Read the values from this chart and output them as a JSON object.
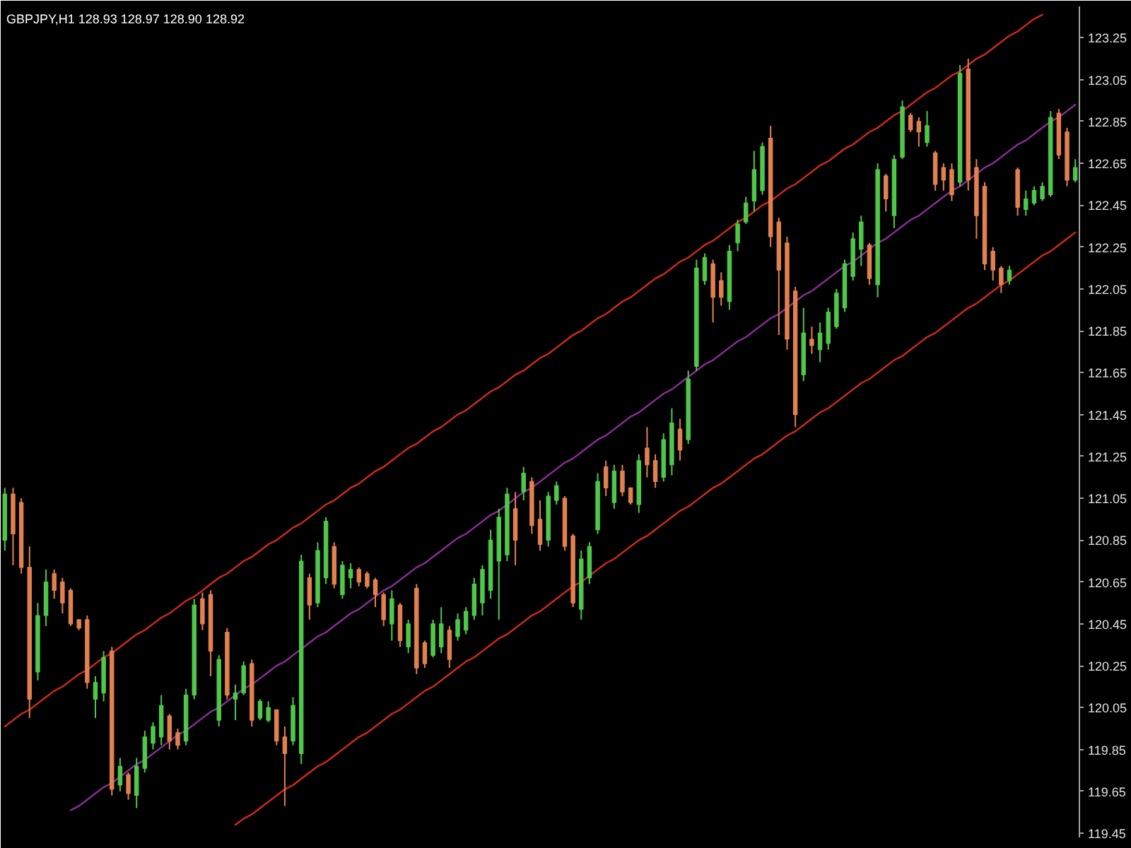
{
  "chart_data": {
    "type": "candlestick",
    "title": "GBPJPY,H1 128.93 128.97 128.90 128.92",
    "categories": [
      null,
      null,
      null,
      null,
      null,
      null,
      null,
      null,
      null,
      null,
      null,
      null,
      null,
      null,
      null,
      null,
      null,
      null,
      null,
      null,
      null,
      null,
      null,
      null,
      null,
      null,
      null,
      null,
      null,
      null,
      null,
      null,
      null,
      null,
      null,
      null,
      null,
      null,
      null,
      null,
      null,
      null,
      null,
      null,
      null,
      null,
      null,
      null,
      null,
      null,
      null,
      null,
      null,
      null,
      null,
      null,
      null,
      null,
      null,
      null,
      null,
      null,
      null,
      null,
      null,
      null,
      null,
      null,
      null,
      null,
      null,
      null,
      null,
      null,
      null,
      null,
      null,
      null,
      null,
      null,
      null,
      null,
      null,
      null,
      null,
      null,
      null,
      null,
      null,
      null,
      null,
      null,
      null,
      null,
      null,
      null,
      null,
      null,
      null,
      null,
      null,
      null,
      null,
      null,
      null,
      null,
      null,
      null,
      null,
      null,
      null,
      null,
      null,
      null,
      null,
      null,
      null,
      null,
      null,
      null,
      null,
      null,
      null,
      null,
      null,
      null,
      null,
      null,
      null,
      null,
      null
    ],
    "ohlc": [
      [
        120.85,
        121.1,
        120.8,
        121.07
      ],
      [
        121.07,
        121.1,
        120.73,
        120.88
      ],
      [
        121.03,
        121.05,
        120.69,
        120.72
      ],
      [
        120.72,
        120.82,
        120.0,
        120.09
      ],
      [
        120.22,
        120.55,
        120.18,
        120.49
      ],
      [
        120.49,
        120.71,
        120.44,
        120.65
      ],
      [
        120.69,
        120.71,
        120.57,
        120.61
      ],
      [
        120.65,
        120.67,
        120.5,
        120.55
      ],
      [
        120.61,
        120.62,
        120.44,
        120.45
      ],
      [
        120.47,
        120.47,
        120.42,
        120.43
      ],
      [
        120.47,
        120.49,
        120.14,
        120.17
      ],
      [
        120.09,
        120.2,
        120.0,
        120.17
      ],
      [
        120.12,
        120.32,
        120.08,
        120.29
      ],
      [
        120.32,
        120.34,
        119.63,
        119.66
      ],
      [
        119.68,
        119.81,
        119.65,
        119.77
      ],
      [
        119.73,
        119.74,
        119.61,
        119.64
      ],
      [
        119.63,
        119.81,
        119.57,
        119.77
      ],
      [
        119.76,
        119.94,
        119.74,
        119.91
      ],
      [
        119.88,
        119.98,
        119.85,
        119.96
      ],
      [
        119.91,
        120.11,
        119.87,
        120.06
      ],
      [
        120.01,
        120.02,
        119.85,
        119.89
      ],
      [
        119.93,
        119.95,
        119.85,
        119.87
      ],
      [
        119.89,
        120.14,
        119.87,
        120.11
      ],
      [
        120.11,
        120.57,
        120.09,
        120.54
      ],
      [
        120.57,
        120.6,
        120.42,
        120.45
      ],
      [
        120.59,
        120.61,
        120.2,
        120.32
      ],
      [
        119.99,
        120.3,
        119.96,
        120.28
      ],
      [
        120.41,
        120.43,
        120.09,
        120.11
      ],
      [
        120.09,
        120.16,
        119.99,
        120.12
      ],
      [
        120.12,
        120.27,
        120.11,
        120.25
      ],
      [
        120.26,
        120.28,
        119.96,
        119.99
      ],
      [
        120.0,
        120.09,
        119.99,
        120.08
      ],
      [
        119.99,
        120.08,
        119.98,
        120.05
      ],
      [
        120.04,
        120.04,
        119.87,
        119.89
      ],
      [
        119.91,
        119.96,
        119.58,
        119.83
      ],
      [
        119.89,
        120.1,
        119.87,
        120.06
      ],
      [
        119.83,
        120.78,
        119.78,
        120.75
      ],
      [
        120.67,
        120.69,
        120.47,
        120.54
      ],
      [
        120.55,
        120.84,
        120.53,
        120.8
      ],
      [
        120.67,
        120.96,
        120.64,
        120.94
      ],
      [
        120.82,
        120.84,
        120.62,
        120.64
      ],
      [
        120.59,
        120.75,
        120.57,
        120.73
      ],
      [
        120.67,
        120.74,
        120.62,
        120.71
      ],
      [
        120.71,
        120.72,
        120.63,
        120.65
      ],
      [
        120.69,
        120.7,
        120.62,
        120.63
      ],
      [
        120.66,
        120.67,
        120.53,
        120.59
      ],
      [
        120.59,
        120.6,
        120.44,
        120.47
      ],
      [
        120.45,
        120.61,
        120.37,
        120.57
      ],
      [
        120.54,
        120.55,
        120.34,
        120.37
      ],
      [
        120.34,
        120.47,
        120.31,
        120.45
      ],
      [
        120.62,
        120.64,
        120.21,
        120.24
      ],
      [
        120.36,
        120.37,
        120.24,
        120.26
      ],
      [
        120.3,
        120.47,
        120.29,
        120.45
      ],
      [
        120.34,
        120.53,
        120.31,
        120.45
      ],
      [
        120.42,
        120.44,
        120.24,
        120.28
      ],
      [
        120.39,
        120.5,
        120.37,
        120.47
      ],
      [
        120.42,
        120.53,
        120.4,
        120.51
      ],
      [
        120.49,
        120.67,
        120.47,
        120.64
      ],
      [
        120.55,
        120.73,
        120.49,
        120.71
      ],
      [
        120.61,
        120.9,
        120.57,
        120.85
      ],
      [
        120.75,
        121.0,
        120.47,
        120.96
      ],
      [
        120.78,
        121.1,
        120.75,
        121.07
      ],
      [
        121.0,
        121.08,
        120.73,
        120.85
      ],
      [
        121.08,
        121.2,
        121.04,
        121.17
      ],
      [
        121.13,
        121.15,
        120.88,
        120.92
      ],
      [
        120.95,
        121.04,
        120.8,
        120.83
      ],
      [
        120.85,
        121.08,
        120.82,
        121.06
      ],
      [
        121.04,
        121.13,
        121.02,
        121.11
      ],
      [
        121.05,
        121.06,
        120.8,
        120.82
      ],
      [
        120.87,
        120.88,
        120.53,
        120.55
      ],
      [
        120.52,
        120.8,
        120.47,
        120.76
      ],
      [
        120.67,
        120.84,
        120.64,
        120.82
      ],
      [
        120.9,
        121.17,
        120.88,
        121.13
      ],
      [
        121.2,
        121.23,
        121.06,
        121.1
      ],
      [
        121.03,
        121.21,
        121.0,
        121.18
      ],
      [
        121.18,
        121.21,
        121.06,
        121.08
      ],
      [
        121.1,
        121.1,
        121.02,
        121.03
      ],
      [
        121.02,
        121.26,
        120.98,
        121.23
      ],
      [
        121.29,
        121.39,
        121.15,
        121.21
      ],
      [
        121.23,
        121.26,
        121.1,
        121.13
      ],
      [
        121.15,
        121.36,
        121.13,
        121.33
      ],
      [
        121.21,
        121.48,
        121.16,
        121.41
      ],
      [
        121.38,
        121.43,
        121.23,
        121.28
      ],
      [
        121.33,
        121.66,
        121.31,
        121.62
      ],
      [
        121.68,
        122.19,
        121.66,
        122.15
      ],
      [
        122.09,
        122.22,
        122.07,
        122.2
      ],
      [
        122.17,
        122.19,
        121.89,
        122.01
      ],
      [
        122.09,
        122.13,
        121.97,
        122.01
      ],
      [
        121.99,
        122.26,
        121.95,
        122.23
      ],
      [
        122.27,
        122.38,
        122.23,
        122.36
      ],
      [
        122.37,
        122.49,
        122.36,
        122.46
      ],
      [
        122.47,
        122.71,
        122.42,
        122.62
      ],
      [
        122.52,
        122.75,
        122.5,
        122.73
      ],
      [
        122.77,
        122.83,
        122.25,
        122.3
      ],
      [
        122.37,
        122.39,
        121.83,
        122.14
      ],
      [
        122.27,
        122.3,
        121.76,
        121.81
      ],
      [
        122.04,
        122.06,
        121.39,
        121.45
      ],
      [
        121.64,
        121.96,
        121.61,
        121.84
      ],
      [
        121.81,
        121.87,
        121.74,
        121.78
      ],
      [
        121.76,
        121.89,
        121.7,
        121.84
      ],
      [
        121.79,
        121.96,
        121.76,
        121.94
      ],
      [
        121.87,
        122.05,
        121.86,
        122.03
      ],
      [
        121.96,
        122.19,
        121.94,
        122.17
      ],
      [
        122.11,
        122.32,
        122.09,
        122.29
      ],
      [
        122.24,
        122.4,
        122.16,
        122.37
      ],
      [
        122.26,
        122.27,
        122.07,
        122.1
      ],
      [
        122.07,
        122.65,
        122.01,
        122.62
      ],
      [
        122.59,
        122.6,
        122.42,
        122.48
      ],
      [
        122.4,
        122.69,
        122.34,
        122.67
      ],
      [
        122.68,
        122.95,
        122.67,
        122.92
      ],
      [
        122.88,
        122.89,
        122.8,
        122.81
      ],
      [
        122.85,
        122.87,
        122.73,
        122.8
      ],
      [
        122.75,
        122.9,
        122.73,
        122.83
      ],
      [
        122.7,
        122.71,
        122.52,
        122.55
      ],
      [
        122.63,
        122.65,
        122.52,
        122.57
      ],
      [
        122.62,
        122.65,
        122.47,
        122.5
      ],
      [
        122.56,
        123.12,
        122.54,
        123.08
      ],
      [
        123.1,
        123.15,
        122.52,
        122.57
      ],
      [
        122.63,
        122.67,
        122.29,
        122.4
      ],
      [
        122.54,
        122.56,
        122.14,
        122.17
      ],
      [
        122.23,
        122.25,
        122.09,
        122.14
      ],
      [
        122.15,
        122.16,
        122.03,
        122.07
      ],
      [
        122.09,
        122.16,
        122.07,
        122.14
      ],
      [
        122.62,
        122.63,
        122.4,
        122.44
      ],
      [
        122.43,
        122.52,
        122.4,
        122.48
      ],
      [
        122.46,
        122.54,
        122.45,
        122.52
      ],
      [
        122.48,
        122.56,
        122.47,
        122.54
      ],
      [
        122.5,
        122.9,
        122.49,
        122.87
      ],
      [
        122.89,
        122.91,
        122.67,
        122.69
      ],
      [
        122.8,
        122.82,
        122.54,
        122.57
      ],
      [
        122.57,
        122.67,
        122.56,
        122.63
      ]
    ],
    "colors": [
      "#4fc84a",
      "#e2814f",
      "#e2814f",
      "#e2814f",
      "#4fc84a",
      "#4fc84a",
      "#e2814f",
      "#e2814f",
      "#e2814f",
      "#e2814f",
      "#e2814f",
      "#4fc84a",
      "#4fc84a",
      "#e2814f",
      "#4fc84a",
      "#e2814f",
      "#4fc84a",
      "#4fc84a",
      "#4fc84a",
      "#4fc84a",
      "#e2814f",
      "#e2814f",
      "#4fc84a",
      "#4fc84a",
      "#e2814f",
      "#e2814f",
      "#4fc84a",
      "#e2814f",
      "#4fc84a",
      "#4fc84a",
      "#e2814f",
      "#4fc84a",
      "#4fc84a",
      "#e2814f",
      "#e2814f",
      "#4fc84a",
      "#4fc84a",
      "#e2814f",
      "#4fc84a",
      "#4fc84a",
      "#e2814f",
      "#4fc84a",
      "#4fc84a",
      "#e2814f",
      "#e2814f",
      "#e2814f",
      "#e2814f",
      "#4fc84a",
      "#e2814f",
      "#4fc84a",
      "#e2814f",
      "#e2814f",
      "#4fc84a",
      "#4fc84a",
      "#e2814f",
      "#4fc84a",
      "#4fc84a",
      "#4fc84a",
      "#4fc84a",
      "#4fc84a",
      "#4fc84a",
      "#4fc84a",
      "#e2814f",
      "#4fc84a",
      "#e2814f",
      "#e2814f",
      "#4fc84a",
      "#4fc84a",
      "#e2814f",
      "#e2814f",
      "#4fc84a",
      "#4fc84a",
      "#4fc84a",
      "#e2814f",
      "#4fc84a",
      "#e2814f",
      "#e2814f",
      "#4fc84a",
      "#e2814f",
      "#e2814f",
      "#4fc84a",
      "#4fc84a",
      "#e2814f",
      "#4fc84a",
      "#4fc84a",
      "#4fc84a",
      "#e2814f",
      "#e2814f",
      "#4fc84a",
      "#4fc84a",
      "#4fc84a",
      "#4fc84a",
      "#4fc84a",
      "#e2814f",
      "#e2814f",
      "#e2814f",
      "#e2814f",
      "#4fc84a",
      "#e2814f",
      "#4fc84a",
      "#4fc84a",
      "#4fc84a",
      "#4fc84a",
      "#4fc84a",
      "#4fc84a",
      "#e2814f",
      "#4fc84a",
      "#e2814f",
      "#4fc84a",
      "#4fc84a",
      "#e2814f",
      "#e2814f",
      "#4fc84a",
      "#e2814f",
      "#e2814f",
      "#e2814f",
      "#4fc84a",
      "#e2814f",
      "#e2814f",
      "#e2814f",
      "#e2814f",
      "#e2814f",
      "#4fc84a",
      "#e2814f",
      "#4fc84a",
      "#4fc84a",
      "#4fc84a",
      "#4fc84a",
      "#e2814f",
      "#e2814f",
      "#4fc84a"
    ],
    "ylim": [
      119.43,
      123.4
    ],
    "yticks": [
      119.45,
      119.65,
      119.85,
      120.05,
      120.25,
      120.45,
      120.65,
      120.85,
      121.05,
      121.25,
      121.45,
      121.65,
      121.85,
      122.05,
      122.25,
      122.45,
      122.65,
      122.85,
      123.05,
      123.25
    ],
    "series": [
      {
        "type": "line",
        "color": "#d22a1a",
        "values": [
          119.96,
          119.99,
          120.02,
          120.04,
          120.07,
          120.1,
          120.13,
          120.15,
          120.18,
          120.21,
          120.23,
          120.26,
          120.29,
          120.31,
          120.34,
          120.37,
          120.4,
          120.42,
          120.45,
          120.48,
          120.5,
          120.53,
          120.56,
          120.58,
          120.61,
          120.64,
          120.67,
          120.69,
          120.72,
          120.75,
          120.77,
          120.8,
          120.83,
          120.85,
          120.88,
          120.91,
          120.93,
          120.96,
          120.99,
          121.02,
          121.04,
          121.07,
          121.1,
          121.12,
          121.15,
          121.18,
          121.2,
          121.23,
          121.26,
          121.29,
          121.31,
          121.34,
          121.37,
          121.39,
          121.42,
          121.45,
          121.47,
          121.5,
          121.53,
          121.56,
          121.58,
          121.61,
          121.64,
          121.66,
          121.69,
          121.72,
          121.74,
          121.77,
          121.8,
          121.83,
          121.85,
          121.88,
          121.91,
          121.93,
          121.96,
          121.99,
          122.01,
          122.04,
          122.07,
          122.1,
          122.12,
          122.15,
          122.18,
          122.2,
          122.23,
          122.26,
          122.28,
          122.31,
          122.34,
          122.37,
          122.39,
          122.42,
          122.45,
          122.47,
          122.5,
          122.53,
          122.55,
          122.58,
          122.61,
          122.64,
          122.66,
          122.69,
          122.72,
          122.74,
          122.77,
          122.8,
          122.82,
          122.85,
          122.88,
          122.9,
          122.93,
          122.96,
          122.99,
          123.01,
          123.04,
          123.07,
          123.09,
          123.12,
          123.15,
          123.17,
          123.2,
          123.23,
          123.26,
          123.28,
          123.31,
          123.34,
          123.36,
          null,
          null,
          null,
          null
        ]
      },
      {
        "type": "line",
        "color": "#8e2c9c",
        "values": [
          null,
          null,
          null,
          null,
          null,
          null,
          null,
          null,
          119.56,
          119.58,
          119.61,
          119.64,
          119.67,
          119.69,
          119.72,
          119.75,
          119.78,
          119.8,
          119.83,
          119.86,
          119.89,
          119.92,
          119.94,
          119.97,
          120.0,
          120.03,
          120.05,
          120.08,
          120.11,
          120.14,
          120.16,
          120.19,
          120.22,
          120.25,
          120.27,
          120.3,
          120.33,
          120.36,
          120.39,
          120.41,
          120.44,
          120.47,
          120.5,
          120.52,
          120.55,
          120.58,
          120.61,
          120.63,
          120.66,
          120.69,
          120.72,
          120.74,
          120.77,
          120.8,
          120.83,
          120.86,
          120.88,
          120.91,
          120.94,
          120.97,
          120.99,
          121.02,
          121.05,
          121.08,
          121.1,
          121.13,
          121.16,
          121.19,
          121.22,
          121.24,
          121.27,
          121.3,
          121.33,
          121.35,
          121.38,
          121.41,
          121.44,
          121.46,
          121.49,
          121.52,
          121.55,
          121.57,
          121.6,
          121.63,
          121.66,
          121.69,
          121.71,
          121.74,
          121.77,
          121.8,
          121.82,
          121.85,
          121.88,
          121.91,
          121.93,
          121.96,
          121.99,
          122.02,
          122.04,
          122.07,
          122.1,
          122.13,
          122.16,
          122.18,
          122.21,
          122.24,
          122.27,
          122.29,
          122.32,
          122.35,
          122.38,
          122.4,
          122.43,
          122.46,
          122.49,
          122.52,
          122.54,
          122.57,
          122.6,
          122.63,
          122.65,
          122.68,
          122.71,
          122.74,
          122.76,
          122.79,
          122.82,
          122.85,
          122.87,
          122.9,
          122.93
        ]
      },
      {
        "type": "line",
        "color": "#d22a1a",
        "values": [
          null,
          null,
          null,
          null,
          null,
          null,
          null,
          null,
          null,
          null,
          null,
          null,
          null,
          null,
          null,
          null,
          null,
          null,
          null,
          null,
          null,
          null,
          null,
          null,
          null,
          null,
          null,
          null,
          119.49,
          119.52,
          119.54,
          119.57,
          119.6,
          119.63,
          119.66,
          119.68,
          119.71,
          119.74,
          119.77,
          119.79,
          119.82,
          119.85,
          119.88,
          119.91,
          119.93,
          119.96,
          119.99,
          120.02,
          120.04,
          120.07,
          120.1,
          120.13,
          120.15,
          120.18,
          120.21,
          120.24,
          120.27,
          120.29,
          120.32,
          120.35,
          120.38,
          120.4,
          120.43,
          120.46,
          120.49,
          120.51,
          120.54,
          120.57,
          120.6,
          120.63,
          120.65,
          120.68,
          120.71,
          120.74,
          120.76,
          120.79,
          120.82,
          120.85,
          120.87,
          120.9,
          120.93,
          120.96,
          120.99,
          121.01,
          121.04,
          121.07,
          121.1,
          121.12,
          121.15,
          121.18,
          121.21,
          121.24,
          121.26,
          121.29,
          121.32,
          121.35,
          121.37,
          121.4,
          121.43,
          121.46,
          121.48,
          121.51,
          121.54,
          121.57,
          121.6,
          121.62,
          121.65,
          121.68,
          121.71,
          121.73,
          121.76,
          121.79,
          121.82,
          121.84,
          121.87,
          121.9,
          121.93,
          121.96,
          121.98,
          122.01,
          122.04,
          122.07,
          122.09,
          122.12,
          122.15,
          122.18,
          122.21,
          122.23,
          122.26,
          122.29,
          122.32
        ]
      }
    ]
  }
}
